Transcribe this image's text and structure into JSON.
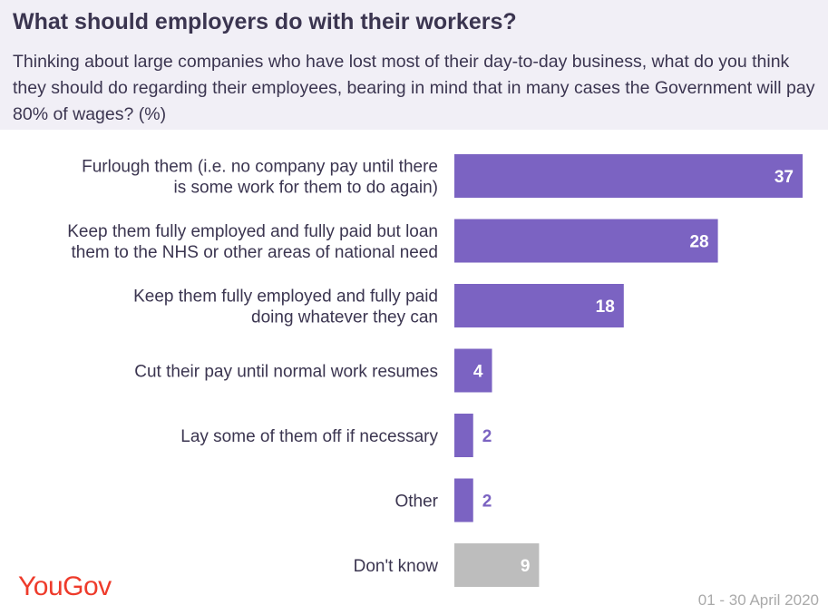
{
  "header": {
    "title": "What should employers do with their workers?",
    "subtitle": "Thinking about large companies who have lost most of their day-to-day business, what do you think they should do regarding their employees, bearing in mind that in many cases the Government will pay 80% of wages? (%)"
  },
  "footer": {
    "logo_text": "YouGov",
    "date": "01 - 30 April 2020"
  },
  "colors": {
    "bar_main": "#7b63c2",
    "bar_dont_know": "#bdbdbd",
    "label_inside": "#ffffff",
    "label_outside": "#7b63c2",
    "text": "#3b3550",
    "logo": "#ee3b2b"
  },
  "chart_data": {
    "type": "bar",
    "orientation": "horizontal",
    "xlim": [
      0,
      37
    ],
    "categories": [
      [
        "Furlough them (i.e. no company pay until there",
        "is some work for them to do again)"
      ],
      [
        "Keep them fully employed and fully paid but loan",
        "them to the NHS or other areas of national need"
      ],
      [
        "Keep them fully employed and fully paid",
        "doing whatever they can"
      ],
      [
        "Cut their pay until normal work resumes"
      ],
      [
        "Lay some of them off if necessary"
      ],
      [
        "Other"
      ],
      [
        "Don't know"
      ]
    ],
    "values": [
      37,
      28,
      18,
      4,
      2,
      2,
      9
    ]
  }
}
